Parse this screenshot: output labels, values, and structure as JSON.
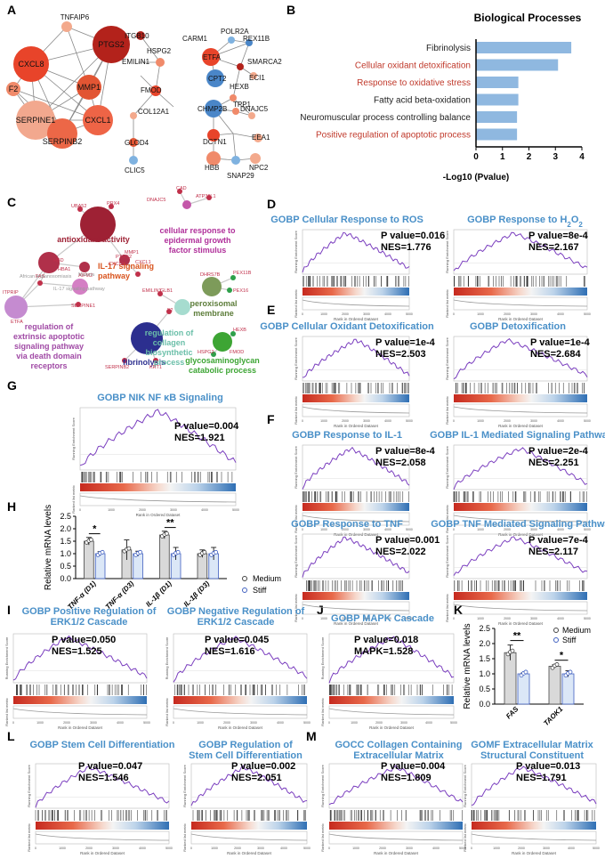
{
  "panels": {
    "A": "A",
    "B": "B",
    "C": "C",
    "D": "D",
    "E": "E",
    "F": "F",
    "G": "G",
    "H": "H",
    "I": "I",
    "J": "J",
    "K": "K",
    "L": "L",
    "M": "M"
  },
  "colors": {
    "gsea_title": "#4a90c8",
    "line": "#7b3fbf",
    "red": "#d9391e",
    "blue": "#4a86c8",
    "bar_b": "#8fb8e0",
    "red_text": "#c0392b"
  },
  "gsea_common": {
    "ylabel": "Running Enrichment Score",
    "ylabel2": "Ranked list metric",
    "xlabel": "Rank in Ordered Dataset"
  },
  "networks": {
    "net1_nodes": [
      "CXCL8",
      "PTGS2",
      "TNFAIP6",
      "F2",
      "MMP1",
      "SERPINE1",
      "CXCL1",
      "SERPINB2"
    ],
    "net2_nodes": [
      "ITGB10",
      "EMILIN1",
      "HSPG2",
      "FMOD",
      "COL12A1",
      "GLOD4",
      "CLIC5"
    ],
    "net3_nodes": [
      "POLR2A",
      "CARM1",
      "REX11B",
      "ETFA",
      "SMARCA2",
      "CPT2",
      "HEXB",
      "ECI1",
      "CHMP2B",
      "TPP1",
      "DNAJC5",
      "DCTN1",
      "EEA1",
      "HBB",
      "NPC2",
      "SNAP29"
    ]
  },
  "enrichment_map": {
    "clusters": [
      "antioxidant activity",
      "IL-17 signaling pathway",
      "cellular response to epidermal growth factor stimulus",
      "peroxisomal membrane",
      "regulation of extrinsic apoptotic signaling pathway via death domain receptors",
      "fibrinolysis",
      "regulation of collagen biosynthetic process",
      "glycosaminoglycan catabolic process"
    ],
    "genes": [
      "UBA52",
      "PRX4",
      "PTGS2",
      "MMP1",
      "CXCL1",
      "CXCL8",
      "HBD",
      "HBA1",
      "CAD",
      "DNAJC5",
      "ATP36L1",
      "DHRS7B",
      "PEX11B",
      "PEX16",
      "FAS",
      "AIFM2",
      "SERPINE1",
      "ITPRIP",
      "ETFA",
      "EMILIN1",
      "GLB1",
      "F2",
      "SERPINB2",
      "KRT1",
      "HEXB",
      "FMOD",
      "HSPG2"
    ],
    "gray_labels": [
      "African trypanosomiasis",
      "Malaria",
      "IL-17 signaling pathway"
    ]
  },
  "gsea": [
    {
      "title": "GOBP Cellular Response to ROS",
      "p": "P value=0.016",
      "nes": "NES=1.776"
    },
    {
      "title_pre": "GOBP  Response to H",
      "title_sub": "2",
      "title_mid": "O",
      "title_sub2": "2",
      "p": "P value=8e-4",
      "nes": "NES=2.167"
    },
    {
      "title": "GOBP Cellular Oxidant Detoxification",
      "p": "P value=1e-4",
      "nes": "NES=2.503"
    },
    {
      "title": "GOBP Detoxification",
      "p": "P value=1e-4",
      "nes": "NES=2.684"
    },
    {
      "title": "GOBP  Response to IL-1",
      "p": "P value=8e-4",
      "nes": "NES=2.058"
    },
    {
      "title": "GOBP IL-1 Mediated Signaling Pathway",
      "p": "P value=2e-4",
      "nes": "NES=2.251"
    },
    {
      "title": "GOBP Response to TNF",
      "p": "P value=0.001",
      "nes": "NES=2.022"
    },
    {
      "title": "GOBP TNF Mediated Signaling Pathway",
      "p": "P value=7e-4",
      "nes": "NES=2.117"
    },
    {
      "title": "GOBP  NIK NF κB Signaling",
      "p": "P value=0.004",
      "nes": "NES=1.921"
    },
    {
      "title": "GOBP Positive Regulation of ERK1/2 Cascade",
      "p": "P value=0.050",
      "nes": "NES=1.525"
    },
    {
      "title": "GOBP Negative Regulation of ERK1/2 Cascade",
      "p": "P value=0.045",
      "nes": "NES=1.616"
    },
    {
      "title": "GOBP MAPK Cascade",
      "p": "P value=0.018",
      "nes": "MAPK=1.528"
    },
    {
      "title": "GOBP Stem Cell Differentiation",
      "p": "P value=0.047",
      "nes": "NES=1.546"
    },
    {
      "title": "GOBP Regulation of Stem Cell Differentiation",
      "p": "P value=0.002",
      "nes": "NES=2.051"
    },
    {
      "title": "GOCC Collagen Containing Extracellular Matrix",
      "p": "P value=0.004",
      "nes": "NES=1.809"
    },
    {
      "title": "GOMF Extracellular Matrix Structural Constituent",
      "p": "P value=0.013",
      "nes": "NES=1.791"
    }
  ],
  "xticks_gsea": [
    "0",
    "1000",
    "2000",
    "3000",
    "4000",
    "5000"
  ],
  "chart_data": [
    {
      "type": "bar",
      "title": "Biological Processes",
      "xlabel": "-Log10 (Pvalue)",
      "orientation": "horizontal",
      "xlim": [
        0,
        4
      ],
      "xticks": [
        "0",
        "1",
        "2",
        "3",
        "4"
      ],
      "categories": [
        "Fibrinolysis",
        "Cellular oxidant detoxification",
        "Response to oxidative stress",
        "Fatty acid beta-oxidation",
        "Neuromuscular process controlling balance",
        "Positive regulation of apoptotic process"
      ],
      "values": [
        3.6,
        3.1,
        1.6,
        1.6,
        1.55,
        1.55
      ],
      "label_colors": [
        "#222222",
        "#c0392b",
        "#c0392b",
        "#222222",
        "#222222",
        "#c0392b"
      ]
    },
    {
      "type": "bar",
      "ylabel": "Relative mRNA levels",
      "ylim": [
        0,
        2.5
      ],
      "yticks": [
        "0.0",
        "0.5",
        "1.0",
        "1.5",
        "2.0",
        "2.5"
      ],
      "categories": [
        "TNF-α (D1)",
        "TNF-α (D3)",
        "IL-1β (D1)",
        "IL-1β (D3)"
      ],
      "series": [
        {
          "name": "Medium",
          "values": [
            1.5,
            1.15,
            1.75,
            1.0
          ]
        },
        {
          "name": "Stiff",
          "values": [
            1.0,
            1.0,
            1.0,
            1.0
          ]
        }
      ],
      "errors": [
        [
          0.15,
          0.4,
          0.15,
          0.15
        ],
        [
          0.08,
          0.1,
          0.25,
          0.25
        ]
      ],
      "significance": [
        "*",
        "",
        "**",
        ""
      ]
    },
    {
      "type": "bar",
      "ylabel": "Relative mRNA levels",
      "ylim": [
        0,
        2.5
      ],
      "yticks": [
        "0.0",
        "0.5",
        "1.0",
        "1.5",
        "2.0",
        "2.5"
      ],
      "categories": [
        "FAS",
        "TAOK1"
      ],
      "series": [
        {
          "name": "Medium",
          "values": [
            1.7,
            1.25
          ]
        },
        {
          "name": "Stiff",
          "values": [
            1.0,
            1.0
          ]
        }
      ],
      "errors": [
        [
          0.25,
          0.05
        ],
        [
          0.03,
          0.1
        ]
      ],
      "significance": [
        "**",
        "*"
      ]
    }
  ]
}
